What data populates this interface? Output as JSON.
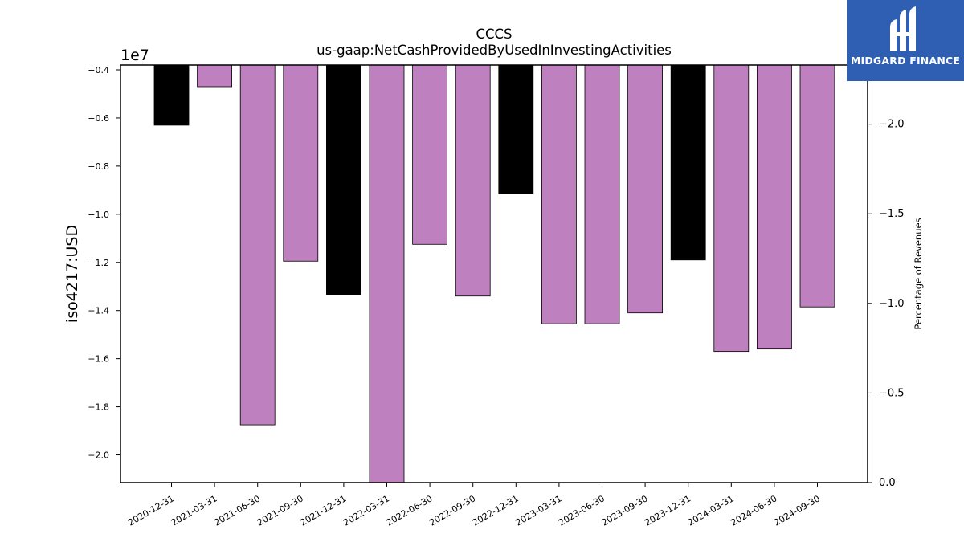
{
  "chart_data": {
    "type": "bar",
    "title": "CCCS",
    "subtitle": "us-gaap:NetCashProvidedByUsedInInvestingActivities",
    "ylabel": "iso4217:USD",
    "y_offset_label": "1e7",
    "y2label": "Percentage of Revenues",
    "ylim": [
      -2.115,
      -0.38
    ],
    "y2lim": [
      0.0,
      2.33
    ],
    "yticks": [
      -0.4,
      -0.6,
      -0.8,
      -1.0,
      -1.2,
      -1.4,
      -1.6,
      -1.8,
      -2.0
    ],
    "ytick_labels": [
      "−0.4",
      "−0.6",
      "−0.8",
      "−1.0",
      "−1.2",
      "−1.4",
      "−1.6",
      "−1.8",
      "−2.0"
    ],
    "y2ticks": [
      2.0,
      1.5,
      1.0,
      0.5,
      0.0
    ],
    "y2tick_labels": [
      "−2.0",
      "−1.5",
      "−1.0",
      "−0.5",
      "0.0"
    ],
    "categories": [
      "2020-12-31",
      "2021-03-31",
      "2021-06-30",
      "2021-09-30",
      "2021-12-31",
      "2022-03-31",
      "2022-06-30",
      "2022-09-30",
      "2022-12-31",
      "2023-03-31",
      "2023-06-30",
      "2023-09-30",
      "2023-12-31",
      "2024-03-31",
      "2024-06-30",
      "2024-09-30"
    ],
    "values": [
      -0.63,
      -0.47,
      -1.875,
      -1.195,
      -1.335,
      -2.115,
      -1.125,
      -1.34,
      -0.915,
      -1.455,
      -1.455,
      -1.41,
      -1.19,
      -1.57,
      -1.56,
      -1.385
    ],
    "bar_colors": [
      "#000000",
      "#bf80bf",
      "#bf80bf",
      "#bf80bf",
      "#000000",
      "#bf80bf",
      "#bf80bf",
      "#bf80bf",
      "#000000",
      "#bf80bf",
      "#bf80bf",
      "#bf80bf",
      "#000000",
      "#bf80bf",
      "#bf80bf",
      "#bf80bf"
    ],
    "grid": false,
    "legend": "none"
  },
  "logo": {
    "text": "MIDGARD FINANCE",
    "background": "#2f5fb3"
  }
}
